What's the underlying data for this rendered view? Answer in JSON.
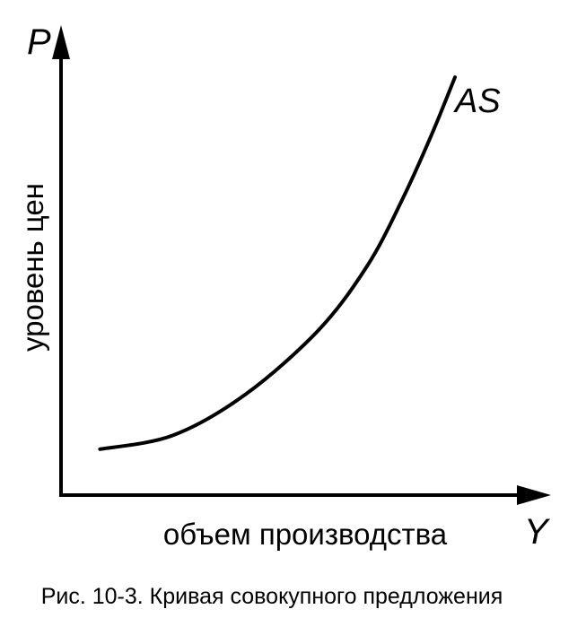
{
  "figure": {
    "y_axis_symbol": "P",
    "x_axis_symbol": "Y",
    "y_axis_title": "уровень цен",
    "x_axis_title": "объем производства",
    "curve_label": "AS",
    "caption": "Рис. 10-3. Кривая совокупного предложения"
  },
  "chart_data": {
    "type": "line",
    "title": "Рис. 10-3. Кривая совокупного предложения",
    "xlabel": "объем производства",
    "ylabel": "уровень цен",
    "series": [
      {
        "name": "AS",
        "x": [
          0.08,
          0.23,
          0.38,
          0.53,
          0.63,
          0.7,
          0.76,
          0.81
        ],
        "y": [
          0.1,
          0.13,
          0.22,
          0.36,
          0.5,
          0.64,
          0.78,
          0.91
        ]
      }
    ],
    "xlim": [
      0,
      1
    ],
    "ylim": [
      0,
      1
    ],
    "grid": false
  }
}
